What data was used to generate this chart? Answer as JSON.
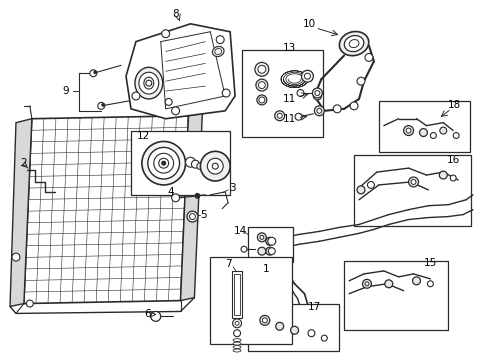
{
  "bg_color": "#ffffff",
  "line_color": "#2a2a2a",
  "label_color": "#000000",
  "fig_width": 4.89,
  "fig_height": 3.6,
  "dpi": 100
}
